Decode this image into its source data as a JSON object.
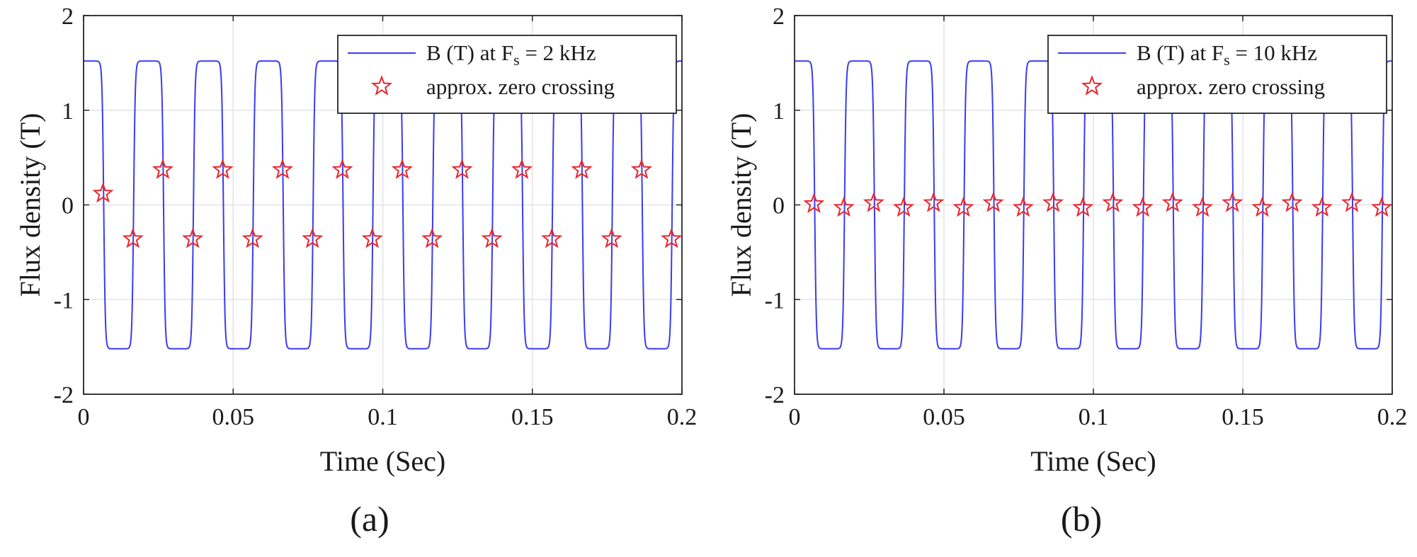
{
  "chart_data": [
    {
      "type": "line",
      "panel_caption": "(a)",
      "xlabel": "Time (Sec)",
      "ylabel": "Flux density (T)",
      "xlim": [
        0,
        0.2
      ],
      "ylim": [
        -2,
        2
      ],
      "xticks": [
        0,
        0.05,
        0.1,
        0.15,
        0.2
      ],
      "xtick_labels": [
        "0",
        "0.05",
        "0.1",
        "0.15",
        "0.2"
      ],
      "yticks": [
        2,
        1,
        0,
        -1,
        -2
      ],
      "ytick_labels": [
        "2",
        "1",
        "0",
        "-1",
        "-2"
      ],
      "grid": true,
      "legend_position": "top-right",
      "series": [
        {
          "name": "B (T) at F_s = 2 kHz",
          "legend_main": "B (T) at F",
          "legend_sub": "s",
          "legend_tail": " = 2 kHz",
          "kind": "line",
          "color": "#3b3bf0",
          "waveform": {
            "period": 0.02,
            "amplitude": 1.52,
            "initial_value": 1.3,
            "sharpness": 6
          }
        },
        {
          "name": "approx. zero crossing",
          "legend_label": "approx. zero crossing",
          "kind": "marker",
          "marker": "pentagram",
          "color": "#e8252e",
          "x": [
            0.0065,
            0.0165,
            0.0265,
            0.0365,
            0.0465,
            0.0565,
            0.0665,
            0.0765,
            0.0865,
            0.0965,
            0.1065,
            0.1165,
            0.1265,
            0.1365,
            0.1465,
            0.1565,
            0.1665,
            0.1765,
            0.1865,
            0.1965
          ],
          "y": [
            0.12,
            -0.36,
            0.37,
            -0.36,
            0.37,
            -0.36,
            0.37,
            -0.36,
            0.37,
            -0.36,
            0.37,
            -0.36,
            0.37,
            -0.36,
            0.37,
            -0.36,
            0.37,
            -0.36,
            0.37,
            -0.36
          ]
        }
      ]
    },
    {
      "type": "line",
      "panel_caption": "(b)",
      "xlabel": "Time (Sec)",
      "ylabel": "Flux density (T)",
      "xlim": [
        0,
        0.2
      ],
      "ylim": [
        -2,
        2
      ],
      "xticks": [
        0,
        0.05,
        0.1,
        0.15,
        0.2
      ],
      "xtick_labels": [
        "0",
        "0.05",
        "0.1",
        "0.15",
        "0.2"
      ],
      "yticks": [
        2,
        1,
        0,
        -1,
        -2
      ],
      "ytick_labels": [
        "2",
        "1",
        "0",
        "-1",
        "-2"
      ],
      "grid": true,
      "legend_position": "top-right",
      "series": [
        {
          "name": "B (T) at F_s = 10 kHz",
          "legend_main": "B (T) at F",
          "legend_sub": "s",
          "legend_tail": " = 10 kHz",
          "kind": "line",
          "color": "#3b3bf0",
          "waveform": {
            "period": 0.02,
            "amplitude": 1.52,
            "initial_value": 1.3,
            "sharpness": 6
          }
        },
        {
          "name": "approx. zero crossing",
          "legend_label": "approx. zero crossing",
          "kind": "marker",
          "marker": "pentagram",
          "color": "#e8252e",
          "x": [
            0.0065,
            0.0165,
            0.0265,
            0.0365,
            0.0465,
            0.0565,
            0.0665,
            0.0765,
            0.0865,
            0.0965,
            0.1065,
            0.1165,
            0.1265,
            0.1365,
            0.1465,
            0.1565,
            0.1665,
            0.1765,
            0.1865,
            0.1965
          ],
          "y": [
            0.01,
            -0.03,
            0.02,
            -0.03,
            0.02,
            -0.03,
            0.02,
            -0.03,
            0.02,
            -0.03,
            0.02,
            -0.03,
            0.02,
            -0.03,
            0.02,
            -0.03,
            0.02,
            -0.03,
            0.02,
            -0.03
          ]
        }
      ]
    }
  ]
}
